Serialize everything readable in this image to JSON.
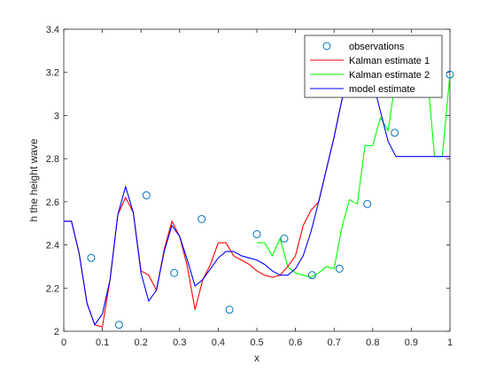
{
  "chart_data": {
    "type": "line",
    "xlabel": "x",
    "ylabel": "h the height wave",
    "xlim": [
      0,
      1
    ],
    "ylim": [
      2,
      3.4
    ],
    "xticks": [
      "0",
      "0.1",
      "0.2",
      "0.3",
      "0.4",
      "0.5",
      "0.6",
      "0.7",
      "0.8",
      "0.9",
      "1"
    ],
    "yticks": [
      "2",
      "2.2",
      "2.4",
      "2.6",
      "2.8",
      "3",
      "3.2",
      "3.4"
    ],
    "grid": false,
    "legend_position": "top-right",
    "colors": {
      "observations": "#0072BD",
      "kalman1": "#FF0000",
      "kalman2": "#00FF00",
      "model": "#0000FF",
      "axis": "#262626"
    },
    "legend": [
      {
        "label": "observations",
        "key": "observations",
        "style": "marker"
      },
      {
        "label": "Kalman estimate 1",
        "key": "kalman1",
        "style": "line"
      },
      {
        "label": "Kalman estimate 2",
        "key": "kalman2",
        "style": "line"
      },
      {
        "label": "model estimate",
        "key": "model",
        "style": "line"
      }
    ],
    "observations": {
      "x": [
        0.071,
        0.143,
        0.214,
        0.286,
        0.357,
        0.429,
        0.5,
        0.571,
        0.643,
        0.714,
        0.786,
        0.857,
        0.929,
        1.0
      ],
      "y": [
        2.34,
        2.03,
        2.63,
        2.27,
        2.52,
        2.1,
        2.45,
        2.43,
        2.26,
        2.29,
        2.59,
        2.92,
        3.28,
        3.19
      ]
    },
    "model": {
      "x": [
        0.0,
        0.02,
        0.04,
        0.06,
        0.08,
        0.1,
        0.12,
        0.14,
        0.16,
        0.18,
        0.2,
        0.22,
        0.24,
        0.26,
        0.28,
        0.3,
        0.32,
        0.34,
        0.36,
        0.38,
        0.4,
        0.42,
        0.44,
        0.46,
        0.48,
        0.5,
        0.52,
        0.54,
        0.56,
        0.58,
        0.6,
        0.62,
        0.64,
        0.66,
        0.68,
        0.7,
        0.72,
        0.74,
        0.76,
        0.78,
        0.8,
        0.82,
        0.84,
        0.86,
        0.88,
        0.9,
        0.92,
        0.94,
        0.96,
        0.98,
        1.0
      ],
      "y": [
        2.51,
        2.51,
        2.36,
        2.13,
        2.03,
        2.08,
        2.24,
        2.54,
        2.67,
        2.55,
        2.27,
        2.14,
        2.19,
        2.37,
        2.49,
        2.44,
        2.33,
        2.21,
        2.24,
        2.29,
        2.34,
        2.37,
        2.37,
        2.35,
        2.34,
        2.33,
        2.31,
        2.28,
        2.26,
        2.26,
        2.29,
        2.35,
        2.46,
        2.6,
        2.75,
        2.9,
        3.07,
        3.19,
        3.27,
        3.24,
        3.16,
        3.02,
        2.88,
        2.81,
        2.81,
        2.81,
        2.81,
        2.81,
        2.81,
        2.81,
        2.81
      ]
    },
    "kalman1": {
      "x": [
        0.0,
        0.02,
        0.04,
        0.06,
        0.08,
        0.1,
        0.12,
        0.14,
        0.16,
        0.18,
        0.2,
        0.22,
        0.24,
        0.26,
        0.28,
        0.3,
        0.32,
        0.34,
        0.36,
        0.38,
        0.4,
        0.42,
        0.44,
        0.46,
        0.48,
        0.5,
        0.52,
        0.54,
        0.56,
        0.58,
        0.6,
        0.62,
        0.64,
        0.66,
        0.68,
        0.7,
        0.72,
        0.74,
        0.76,
        0.78
      ],
      "y": [
        2.51,
        2.51,
        2.36,
        2.13,
        2.03,
        2.02,
        2.24,
        2.54,
        2.62,
        2.55,
        2.28,
        2.26,
        2.19,
        2.38,
        2.51,
        2.44,
        2.3,
        2.1,
        2.24,
        2.31,
        2.41,
        2.41,
        2.35,
        2.33,
        2.31,
        2.28,
        2.26,
        2.25,
        2.26,
        2.3,
        2.35,
        2.49,
        2.56,
        2.6,
        2.75,
        2.9,
        3.07,
        3.19,
        3.27,
        3.24
      ]
    },
    "kalman2": {
      "x": [
        0.5,
        0.52,
        0.54,
        0.56,
        0.58,
        0.6,
        0.62,
        0.64,
        0.66,
        0.68,
        0.7,
        0.72,
        0.74,
        0.76,
        0.78,
        0.8,
        0.82,
        0.84,
        0.857,
        0.88,
        0.9,
        0.92,
        0.94,
        0.96,
        0.98,
        1.0
      ],
      "y": [
        2.41,
        2.41,
        2.35,
        2.43,
        2.3,
        2.27,
        2.26,
        2.25,
        2.27,
        2.3,
        2.29,
        2.48,
        2.61,
        2.59,
        2.86,
        2.86,
        2.99,
        2.93,
        3.14,
        3.14,
        3.21,
        3.21,
        3.22,
        2.81,
        2.81,
        3.19
      ]
    }
  }
}
